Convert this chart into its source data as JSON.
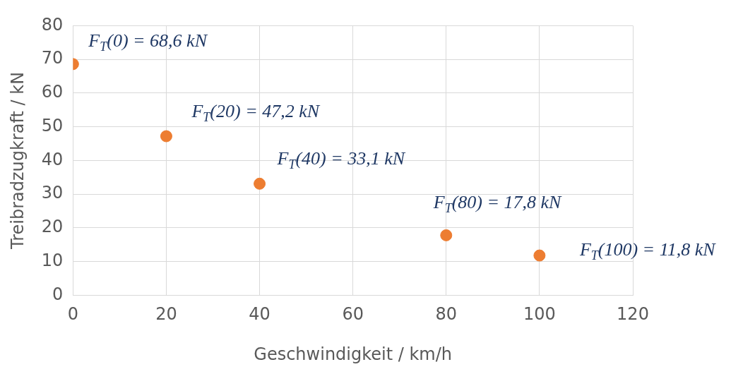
{
  "chart_data": {
    "type": "scatter",
    "xlabel": "Geschwindigkeit / km/h",
    "ylabel": "Treibradzugkraft / kN",
    "x": [
      0,
      20,
      40,
      80,
      100
    ],
    "series": [
      {
        "color": "#ed7d31",
        "values": [
          68.6,
          47.2,
          33.1,
          17.8,
          11.8
        ]
      }
    ],
    "xlim": [
      0,
      120
    ],
    "xticks": [
      0,
      20,
      40,
      60,
      80,
      100,
      120
    ],
    "ylim": [
      0,
      80
    ],
    "yticks": [
      0,
      10,
      20,
      30,
      40,
      50,
      60,
      70,
      80
    ],
    "grid": true,
    "legend": false,
    "marker": "circle",
    "annotations": [
      {
        "text": "F$_{T}$(0) = 68,6 kN",
        "x": 0,
        "y": 68.6
      },
      {
        "text": "F$_{T}$(20) = 47,2 kN",
        "x": 20,
        "y": 47.2
      },
      {
        "text": "F$_{T}$(40) = 33,1 kN",
        "x": 40,
        "y": 33.1
      },
      {
        "text": "F$_{T}$(80) = 17,8 kN",
        "x": 80,
        "y": 17.8
      },
      {
        "text": "F$_{T}$(100) = 11,8 kN",
        "x": 100,
        "y": 11.8
      }
    ]
  }
}
